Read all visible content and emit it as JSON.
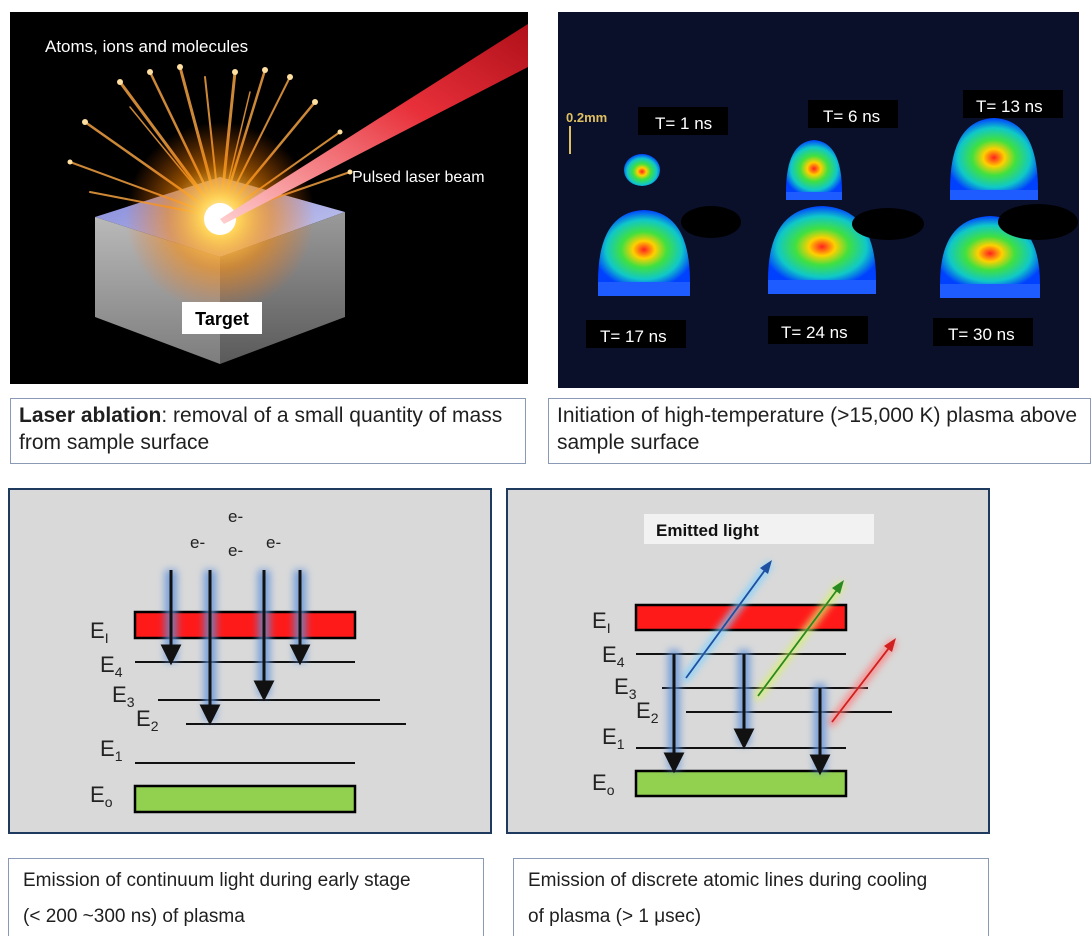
{
  "laser_panel": {
    "label_particles": "Atoms, ions and molecules",
    "label_beam": "Pulsed laser beam",
    "label_target": "Target"
  },
  "plasma_panel": {
    "scale_label": "0.2mm",
    "frames": [
      "T= 1 ns",
      "T= 6 ns",
      "T= 13 ns",
      "T= 17 ns",
      "T= 24 ns",
      "T= 30 ns"
    ]
  },
  "captions": {
    "ablation_bold": "Laser ablation",
    "ablation_rest": ": removal of a small quantity of mass from sample surface",
    "initiation": "Initiation of high-temperature (>15,000 K) plasma above sample surface",
    "continuum_line1": "Emission of continuum light during early stage",
    "continuum_line2": "(< 200 ~300 ns) of plasma",
    "discrete_line1": "Emission of discrete atomic lines during cooling",
    "discrete_line2": "of plasma (> 1 μsec)"
  },
  "energy_levels": {
    "electron": "e-",
    "E_main": "E",
    "sub_I": "I",
    "sub_4": "4",
    "sub_3": "3",
    "sub_2": "2",
    "sub_1": "1",
    "sub_o": "o",
    "emitted_light": "Emitted light"
  },
  "colors": {
    "laser_red": "#e8303a",
    "level_red": "#ff1a1a",
    "level_green": "#92d050",
    "panel_gray": "#d9d9d9",
    "panel_border": "#1f3a5f"
  }
}
